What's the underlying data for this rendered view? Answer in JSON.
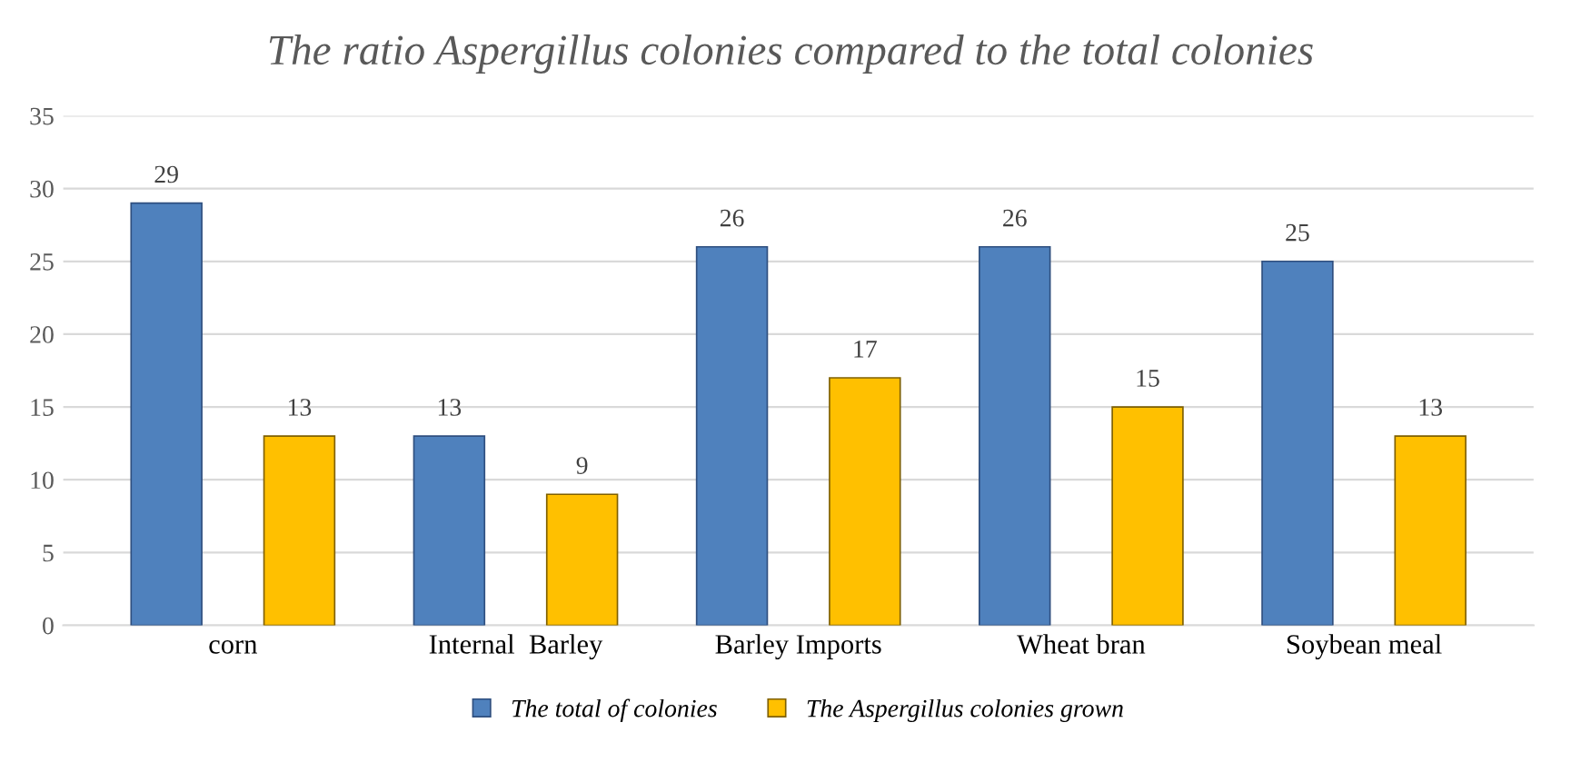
{
  "chart_data": {
    "type": "bar",
    "title": "The ratio Aspergillus colonies compared to the total colonies",
    "categories": [
      "corn",
      "Internal  Barley",
      "Barley Imports",
      "Wheat bran",
      "Soybean meal"
    ],
    "series": [
      {
        "name": "The total of colonies",
        "color": "#4f81bd",
        "values": [
          29,
          13,
          26,
          26,
          25
        ]
      },
      {
        "name": "The Aspergillus colonies grown",
        "color": "#ffc000",
        "values": [
          13,
          9,
          17,
          15,
          13
        ]
      }
    ],
    "ylim": [
      0,
      35
    ],
    "yticks": [
      0,
      5,
      10,
      15,
      20,
      25,
      30,
      35
    ],
    "grid": "y",
    "legend": "bottom",
    "data_labels": true
  }
}
